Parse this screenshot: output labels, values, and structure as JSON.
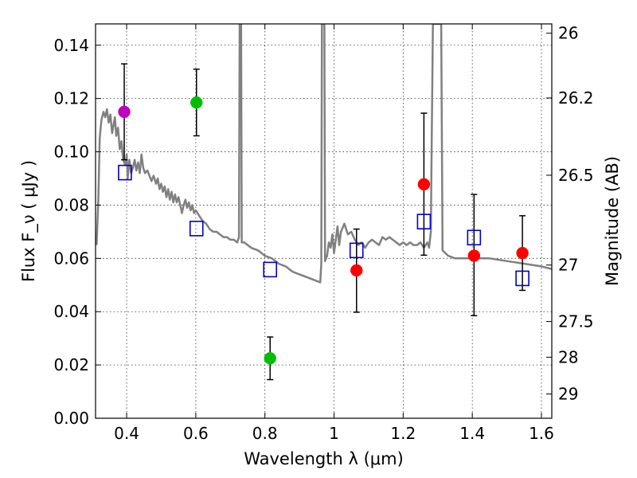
{
  "chart_data": {
    "type": "scatter",
    "xlabel": "Wavelength  λ (μm)",
    "ylabel": "Flux  F_ν  ( μJy )",
    "y2label": "Magnitude (AB)",
    "xlim": [
      0.31,
      1.63
    ],
    "ylim": [
      0.0,
      0.148
    ],
    "grid": true,
    "x_ticks": [
      0.4,
      0.6,
      0.8,
      1.0,
      1.2,
      1.4,
      1.6
    ],
    "x_tick_labels": [
      "0.4",
      "0.6",
      "0.8",
      "1",
      "1.2",
      "1.4",
      "1.6"
    ],
    "y_ticks": [
      0.0,
      0.02,
      0.04,
      0.06,
      0.08,
      0.1,
      0.12,
      0.14
    ],
    "y_tick_labels": [
      "0.00",
      "0.02",
      "0.04",
      "0.06",
      "0.08",
      "0.10",
      "0.12",
      "0.14"
    ],
    "y2_ticks": [
      {
        "label": "26",
        "flux": 0.1445
      },
      {
        "label": "26.2",
        "flux": 0.1202
      },
      {
        "label": "26.5",
        "flux": 0.0912
      },
      {
        "label": "27",
        "flux": 0.0575
      },
      {
        "label": "27.5",
        "flux": 0.0363
      },
      {
        "label": "28",
        "flux": 0.0229
      },
      {
        "label": "29",
        "flux": 0.0091
      }
    ],
    "series": [
      {
        "name": "template_spectrum",
        "kind": "line",
        "color": "#808080",
        "points": [
          [
            0.313,
            0.065
          ],
          [
            0.318,
            0.082
          ],
          [
            0.322,
            0.105
          ],
          [
            0.327,
            0.112
          ],
          [
            0.333,
            0.115
          ],
          [
            0.338,
            0.113
          ],
          [
            0.343,
            0.116
          ],
          [
            0.348,
            0.111
          ],
          [
            0.353,
            0.114
          ],
          [
            0.358,
            0.107
          ],
          [
            0.362,
            0.11
          ],
          [
            0.366,
            0.113
          ],
          [
            0.37,
            0.106
          ],
          [
            0.375,
            0.109
          ],
          [
            0.38,
            0.101
          ],
          [
            0.385,
            0.104
          ],
          [
            0.39,
            0.097
          ],
          [
            0.396,
            0.095
          ],
          [
            0.4,
            0.099
          ],
          [
            0.403,
            0.09
          ],
          [
            0.408,
            0.097
          ],
          [
            0.413,
            0.092
          ],
          [
            0.418,
            0.094
          ],
          [
            0.423,
            0.097
          ],
          [
            0.428,
            0.093
          ],
          [
            0.433,
            0.096
          ],
          [
            0.438,
            0.092
          ],
          [
            0.443,
            0.099
          ],
          [
            0.448,
            0.094
          ],
          [
            0.453,
            0.092
          ],
          [
            0.46,
            0.093
          ],
          [
            0.466,
            0.091
          ],
          [
            0.472,
            0.089
          ],
          [
            0.478,
            0.091
          ],
          [
            0.485,
            0.088
          ],
          [
            0.49,
            0.09
          ],
          [
            0.495,
            0.086
          ],
          [
            0.5,
            0.088
          ],
          [
            0.505,
            0.085
          ],
          [
            0.51,
            0.087
          ],
          [
            0.515,
            0.083
          ],
          [
            0.52,
            0.086
          ],
          [
            0.525,
            0.082
          ],
          [
            0.53,
            0.085
          ],
          [
            0.535,
            0.081
          ],
          [
            0.54,
            0.084
          ],
          [
            0.545,
            0.081
          ],
          [
            0.55,
            0.083
          ],
          [
            0.555,
            0.08
          ],
          [
            0.56,
            0.077
          ],
          [
            0.565,
            0.08
          ],
          [
            0.57,
            0.082
          ],
          [
            0.575,
            0.079
          ],
          [
            0.58,
            0.081
          ],
          [
            0.585,
            0.078
          ],
          [
            0.59,
            0.08
          ],
          [
            0.595,
            0.077
          ],
          [
            0.6,
            0.078
          ],
          [
            0.61,
            0.076
          ],
          [
            0.62,
            0.074
          ],
          [
            0.63,
            0.073
          ],
          [
            0.64,
            0.071
          ],
          [
            0.65,
            0.07
          ],
          [
            0.66,
            0.07
          ],
          [
            0.67,
            0.069
          ],
          [
            0.68,
            0.068
          ],
          [
            0.69,
            0.068
          ],
          [
            0.7,
            0.067
          ],
          [
            0.71,
            0.067
          ],
          [
            0.72,
            0.066
          ],
          [
            0.725,
            0.068
          ],
          [
            0.727,
            0.148
          ],
          [
            0.731,
            0.148
          ],
          [
            0.733,
            0.066
          ],
          [
            0.74,
            0.066
          ],
          [
            0.76,
            0.064
          ],
          [
            0.78,
            0.063
          ],
          [
            0.8,
            0.061
          ],
          [
            0.82,
            0.06
          ],
          [
            0.84,
            0.058
          ],
          [
            0.86,
            0.057
          ],
          [
            0.88,
            0.055
          ],
          [
            0.9,
            0.054
          ],
          [
            0.92,
            0.053
          ],
          [
            0.94,
            0.052
          ],
          [
            0.96,
            0.051
          ],
          [
            0.963,
            0.058
          ],
          [
            0.965,
            0.148
          ],
          [
            0.972,
            0.148
          ],
          [
            0.974,
            0.059
          ],
          [
            0.98,
            0.061
          ],
          [
            0.985,
            0.066
          ],
          [
            0.99,
            0.064
          ],
          [
            0.995,
            0.069
          ],
          [
            1.0,
            0.062
          ],
          [
            1.005,
            0.067
          ],
          [
            1.01,
            0.072
          ],
          [
            1.015,
            0.065
          ],
          [
            1.02,
            0.07
          ],
          [
            1.03,
            0.073
          ],
          [
            1.04,
            0.069
          ],
          [
            1.05,
            0.07
          ],
          [
            1.06,
            0.067
          ],
          [
            1.07,
            0.065
          ],
          [
            1.08,
            0.066
          ],
          [
            1.09,
            0.064
          ],
          [
            1.1,
            0.066
          ],
          [
            1.11,
            0.067
          ],
          [
            1.12,
            0.066
          ],
          [
            1.13,
            0.065
          ],
          [
            1.14,
            0.068
          ],
          [
            1.15,
            0.067
          ],
          [
            1.16,
            0.068
          ],
          [
            1.17,
            0.067
          ],
          [
            1.18,
            0.066
          ],
          [
            1.19,
            0.065
          ],
          [
            1.2,
            0.066
          ],
          [
            1.21,
            0.065
          ],
          [
            1.22,
            0.066
          ],
          [
            1.23,
            0.065
          ],
          [
            1.24,
            0.065
          ],
          [
            1.25,
            0.066
          ],
          [
            1.26,
            0.064
          ],
          [
            1.27,
            0.066
          ],
          [
            1.275,
            0.064
          ],
          [
            1.28,
            0.07
          ],
          [
            1.282,
            0.095
          ],
          [
            1.286,
            0.148
          ],
          [
            1.31,
            0.148
          ],
          [
            1.314,
            0.063
          ],
          [
            1.33,
            0.061
          ],
          [
            1.35,
            0.06
          ],
          [
            1.4,
            0.06
          ],
          [
            1.45,
            0.06
          ],
          [
            1.5,
            0.059
          ],
          [
            1.55,
            0.058
          ],
          [
            1.6,
            0.057
          ],
          [
            1.63,
            0.056
          ]
        ]
      },
      {
        "name": "observed_photometry",
        "kind": "points",
        "marker": "circle",
        "points": [
          {
            "x": 0.393,
            "y": 0.115,
            "err_low": 0.097,
            "err_high": 0.133,
            "color": "#bf00bf"
          },
          {
            "x": 0.602,
            "y": 0.1185,
            "err_low": 0.106,
            "err_high": 0.131,
            "color": "#00bf00"
          },
          {
            "x": 0.815,
            "y": 0.0225,
            "err_low": 0.0145,
            "err_high": 0.0305,
            "color": "#00bf00"
          },
          {
            "x": 1.065,
            "y": 0.0555,
            "err_low": 0.0398,
            "err_high": 0.071,
            "color": "#ff0000"
          },
          {
            "x": 1.26,
            "y": 0.0878,
            "err_low": 0.0612,
            "err_high": 0.1145,
            "color": "#ff0000"
          },
          {
            "x": 1.405,
            "y": 0.061,
            "err_low": 0.0385,
            "err_high": 0.084,
            "color": "#ff0000"
          },
          {
            "x": 1.545,
            "y": 0.062,
            "err_low": 0.048,
            "err_high": 0.076,
            "color": "#ff0000"
          }
        ]
      },
      {
        "name": "model_photometry",
        "kind": "points",
        "marker": "open-square",
        "color": "#0000cc",
        "points": [
          {
            "x": 0.395,
            "y": 0.0922
          },
          {
            "x": 0.602,
            "y": 0.0712
          },
          {
            "x": 0.815,
            "y": 0.0558
          },
          {
            "x": 1.065,
            "y": 0.063
          },
          {
            "x": 1.26,
            "y": 0.0738
          },
          {
            "x": 1.405,
            "y": 0.0678
          },
          {
            "x": 1.545,
            "y": 0.0525
          }
        ]
      }
    ]
  }
}
